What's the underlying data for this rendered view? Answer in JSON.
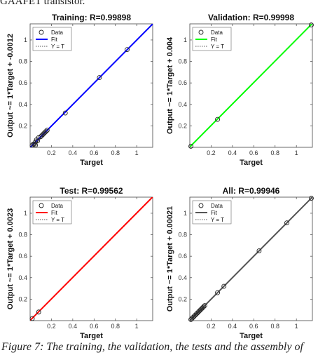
{
  "page": {
    "top_text": "GAAFET transistor.",
    "caption": "Figure 7: The training, the validation, the tests and the assembly of"
  },
  "legend_labels": [
    "Data",
    "Fit",
    "Y = T"
  ],
  "chart_data": [
    {
      "type": "scatter",
      "title": "Training: R=0.99898",
      "xlabel": "Target",
      "ylabel": "Output ~= 1*Target + -0.0012",
      "xlim": [
        0,
        1.15
      ],
      "ylim": [
        0,
        1.15
      ],
      "xticks": [
        0.2,
        0.4,
        0.6,
        0.8,
        1
      ],
      "yticks": [
        0.2,
        0.4,
        0.6,
        0.8,
        1
      ],
      "fit_color": "#0000ff",
      "fit": {
        "slope": 1,
        "intercept": -0.0012
      },
      "points": [
        [
          0.02,
          0.02
        ],
        [
          0.03,
          0.03
        ],
        [
          0.04,
          0.03
        ],
        [
          0.05,
          0.05
        ],
        [
          0.06,
          0.07
        ],
        [
          0.07,
          0.06
        ],
        [
          0.08,
          0.09
        ],
        [
          0.1,
          0.1
        ],
        [
          0.11,
          0.11
        ],
        [
          0.12,
          0.12
        ],
        [
          0.13,
          0.13
        ],
        [
          0.14,
          0.14
        ],
        [
          0.15,
          0.15
        ],
        [
          0.16,
          0.16
        ],
        [
          0.05,
          0.02
        ],
        [
          0.33,
          0.32
        ],
        [
          0.65,
          0.65
        ],
        [
          0.91,
          0.91
        ]
      ],
      "legend": "top-left"
    },
    {
      "type": "scatter",
      "title": "Validation: R=0.99998",
      "xlabel": "Target",
      "ylabel": "Output ~= 1*Target + 0.004",
      "xlim": [
        0,
        1.15
      ],
      "ylim": [
        0,
        1.15
      ],
      "xticks": [
        0.2,
        0.4,
        0.6,
        0.8,
        1
      ],
      "yticks": [
        0.2,
        0.4,
        0.6,
        0.8,
        1
      ],
      "fit_color": "#00ff00",
      "fit": {
        "slope": 1,
        "intercept": 0.004
      },
      "points": [
        [
          0.01,
          0.01
        ],
        [
          0.26,
          0.26
        ],
        [
          1.14,
          1.14
        ]
      ],
      "legend": "top-left"
    },
    {
      "type": "scatter",
      "title": "Test: R=0.99562",
      "xlabel": "Target",
      "ylabel": "Output ~= 1*Target + 0.0023",
      "xlim": [
        0,
        1.15
      ],
      "ylim": [
        0,
        1.15
      ],
      "xticks": [
        0.2,
        0.4,
        0.6,
        0.8,
        1
      ],
      "yticks": [
        0.2,
        0.4,
        0.6,
        0.8,
        1
      ],
      "fit_color": "#ff0000",
      "fit": {
        "slope": 1,
        "intercept": 0.0023
      },
      "points": [
        [
          0.02,
          0.02
        ],
        [
          0.08,
          0.08
        ]
      ],
      "legend": "top-left"
    },
    {
      "type": "scatter",
      "title": "All: R=0.99946",
      "xlabel": "Target",
      "ylabel": "Output ~= 1*Target + 0.00021",
      "xlim": [
        0,
        1.15
      ],
      "ylim": [
        0,
        1.15
      ],
      "xticks": [
        0.2,
        0.4,
        0.6,
        0.8,
        1
      ],
      "yticks": [
        0.2,
        0.4,
        0.6,
        0.8,
        1
      ],
      "fit_color": "#555555",
      "fit": {
        "slope": 1,
        "intercept": 0.00021
      },
      "points": [
        [
          0.01,
          0.01
        ],
        [
          0.02,
          0.02
        ],
        [
          0.03,
          0.03
        ],
        [
          0.04,
          0.04
        ],
        [
          0.05,
          0.05
        ],
        [
          0.06,
          0.06
        ],
        [
          0.07,
          0.07
        ],
        [
          0.08,
          0.08
        ],
        [
          0.09,
          0.09
        ],
        [
          0.1,
          0.1
        ],
        [
          0.11,
          0.11
        ],
        [
          0.12,
          0.12
        ],
        [
          0.13,
          0.13
        ],
        [
          0.14,
          0.14
        ],
        [
          0.26,
          0.26
        ],
        [
          0.32,
          0.32
        ],
        [
          0.65,
          0.65
        ],
        [
          0.91,
          0.91
        ],
        [
          1.14,
          1.14
        ]
      ],
      "legend": "top-left"
    }
  ]
}
